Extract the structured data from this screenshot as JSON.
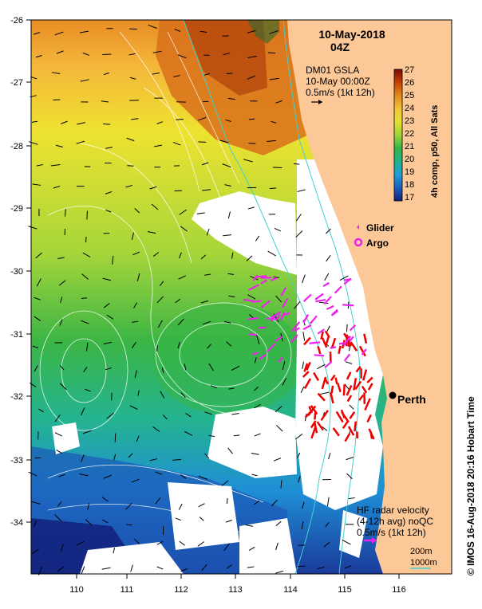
{
  "title": {
    "date": "10-May-2018",
    "time": "04Z"
  },
  "gsla": {
    "line1": "DM01 GSLA",
    "line2": "10-May 00:00Z",
    "line3": "0.5m/s (1kt 12h)"
  },
  "colorbar": {
    "label": "4h comp, p50, All Sats",
    "ticks": [
      "27",
      "26",
      "25",
      "24",
      "23",
      "22",
      "21",
      "20",
      "19",
      "18",
      "17"
    ],
    "colors": [
      "#7a0a0a",
      "#c44100",
      "#e38b1c",
      "#f2c43a",
      "#e3e12b",
      "#9bd33a",
      "#35b545",
      "#22b38e",
      "#1f9ed6",
      "#1d5ec0",
      "#101e7a"
    ]
  },
  "legend": {
    "glider_label": "Glider",
    "argo_label": "Argo",
    "marker_color": "#ee22ee"
  },
  "city": {
    "name": "Perth"
  },
  "hf_radar": {
    "line1": "HF radar velocity",
    "line2": "(4-12h avg) noQC",
    "line3": "0.5m/s (1kt 12h)",
    "arrow_color": "#ee22ee"
  },
  "contours": {
    "label_200": "200m",
    "label_1000": "1000m",
    "color": "#40d0d0"
  },
  "axes": {
    "y_ticks": [
      "-26",
      "-27",
      "-28",
      "-29",
      "-30",
      "-31",
      "-32",
      "-33",
      "-34"
    ],
    "x_ticks": [
      "110",
      "111",
      "112",
      "113",
      "114",
      "115",
      "116"
    ]
  },
  "credit": "© IMOS 16-Aug-2018 20:16 Hobart Time",
  "colors": {
    "land": "#fdc898",
    "cloud": "#ffffff",
    "sst_warm": "#c85a10",
    "sst_mid": "#e6df30",
    "sst_cool": "#35b545",
    "sst_cold": "#1f6ec8",
    "hf_arrow": "#ee0000"
  }
}
